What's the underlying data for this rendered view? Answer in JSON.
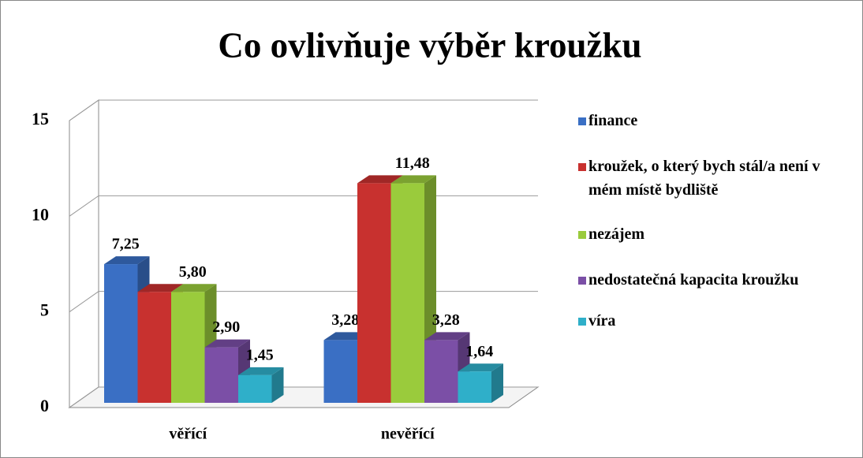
{
  "chart_data": {
    "type": "bar3d",
    "title": "Co ovlivňuje výběr kroužku",
    "categories": [
      "věřící",
      "nevěřící"
    ],
    "series": [
      {
        "name": "finance",
        "color": "#3a6fc4",
        "values": [
          7.25,
          3.28
        ],
        "value_labels": [
          "7,25",
          "3,28"
        ]
      },
      {
        "name": "kroužek, o který bych stál/a není v mém místě bydliště",
        "color": "#c8312f",
        "values": [
          5.8,
          11.48
        ],
        "value_labels": [
          null,
          null
        ]
      },
      {
        "name": "nezájem",
        "color": "#9acb3c",
        "values": [
          5.8,
          11.48
        ],
        "value_labels": [
          "5,80",
          "11,48"
        ]
      },
      {
        "name": "nedostatečná kapacita kroužku",
        "color": "#7b4fa6",
        "values": [
          2.9,
          3.28
        ],
        "value_labels": [
          "2,90",
          "3,28"
        ]
      },
      {
        "name": "víra",
        "color": "#2fafc9",
        "values": [
          1.45,
          1.64
        ],
        "value_labels": [
          "1,45",
          "1,64"
        ]
      }
    ],
    "ylim": [
      0,
      15
    ],
    "yticks": [
      0,
      5,
      10,
      15
    ],
    "grid": true,
    "legend": "right"
  }
}
